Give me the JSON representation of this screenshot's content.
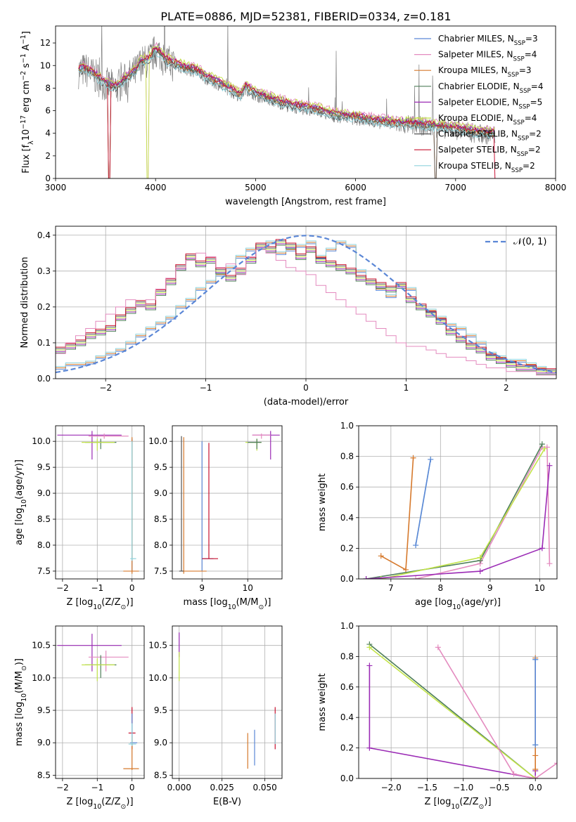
{
  "figure": {
    "title": "PLATE=0886, MJD=52381, FIBERID=0334, z=0.181"
  },
  "series_styles": [
    {
      "label": "Chabrier MILES, N<sub>SSP</sub>=3",
      "color": "#5b87d6"
    },
    {
      "label": "Salpeter MILES, N<sub>SSP</sub>=4",
      "color": "#e48bbf"
    },
    {
      "label": "Kroupa MILES, N<sub>SSP</sub>=3",
      "color": "#d6792c"
    },
    {
      "label": "Chabrier ELODIE, N<sub>SSP</sub>=4",
      "color": "#4f7f5a"
    },
    {
      "label": "Salpeter ELODIE, N<sub>SSP</sub>=5",
      "color": "#9b2bb5"
    },
    {
      "label": "Kroupa ELODIE, N<sub>SSP</sub>=4",
      "color": "#c3e44a"
    },
    {
      "label": "Chabrier STELIB, N<sub>SSP</sub>=2",
      "color": "#555555"
    },
    {
      "label": "Salpeter STELIB, N<sub>SSP</sub>=2",
      "color": "#c8102e"
    },
    {
      "label": "Kroupa STELIB, N<sub>SSP</sub>=2",
      "color": "#8fd3dd"
    }
  ],
  "chart_data": [
    {
      "id": "spectrum",
      "type": "line",
      "xlabel": "wavelength [Angstrom, rest frame]",
      "ylabel": "Flux [f<sub>λ</sub>10<sup>−17</sup> erg cm<sup>−2</sup> s<sup>−1</sup> A<sup>−1</sup>]",
      "xlim": [
        3000,
        8000
      ],
      "ylim": [
        0,
        13.5
      ],
      "xticks": [
        3000,
        4000,
        5000,
        6000,
        7000,
        8000
      ],
      "yticks": [
        0,
        2,
        4,
        6,
        8,
        10,
        12
      ],
      "grid": false,
      "legend": "top-right",
      "data_color": "#808080",
      "continuum": {
        "x": [
          3230,
          3300,
          3400,
          3500,
          3600,
          3700,
          3800,
          3850,
          3900,
          3950,
          4000,
          4050,
          4100,
          4200,
          4300,
          4400,
          4500,
          4600,
          4700,
          4800,
          4850,
          4900,
          5000,
          5200,
          5400,
          5600,
          5800,
          6000,
          6200,
          6400,
          6600,
          6800,
          7000,
          7200,
          7400
        ],
        "y": [
          9.5,
          9.6,
          9.0,
          8.3,
          8.0,
          8.7,
          9.4,
          10.2,
          10.3,
          10.6,
          11.3,
          11.0,
          10.4,
          10.0,
          9.7,
          9.5,
          8.9,
          8.5,
          8.0,
          7.5,
          7.3,
          8.0,
          7.4,
          6.8,
          6.3,
          6.0,
          5.5,
          5.3,
          5.0,
          4.8,
          4.7,
          4.5,
          4.3,
          4.0,
          3.8
        ]
      },
      "model_offsets": [
        0.25,
        0.55,
        0.1,
        0.2,
        0.35,
        0.5,
        -0.1,
        0.3,
        -0.15
      ],
      "dropouts": [
        {
          "x": 3535,
          "series": [
            2,
            7,
            3
          ]
        },
        {
          "x": 3920,
          "series": [
            5,
            1
          ]
        },
        {
          "x": 6800,
          "series": [
            6,
            2
          ]
        },
        {
          "x": 7400,
          "series": [
            7,
            1
          ]
        }
      ]
    },
    {
      "id": "residuals",
      "type": "step",
      "xlabel": "(data-model)/error",
      "ylabel": "Normed distribution",
      "xlim": [
        -2.5,
        2.5
      ],
      "ylim": [
        0,
        0.425
      ],
      "xticks": [
        -2,
        -1,
        0,
        1,
        2
      ],
      "yticks": [
        0.0,
        0.1,
        0.2,
        0.3,
        0.4
      ],
      "grid": true,
      "legend": "top-right",
      "normal_label": "𝒩(0, 1)",
      "normal_color": "#5b87d6",
      "bins": [
        -2.5,
        -2.4,
        -2.3,
        -2.2,
        -2.1,
        -2.0,
        -1.9,
        -1.8,
        -1.7,
        -1.6,
        -1.5,
        -1.4,
        -1.3,
        -1.2,
        -1.1,
        -1.0,
        -0.9,
        -0.8,
        -0.7,
        -0.6,
        -0.5,
        -0.4,
        -0.3,
        -0.2,
        -0.1,
        0.0,
        0.1,
        0.2,
        0.3,
        0.4,
        0.5,
        0.6,
        0.7,
        0.8,
        0.9,
        1.0,
        1.1,
        1.2,
        1.3,
        1.4,
        1.5,
        1.6,
        1.7,
        1.8,
        1.9,
        2.0,
        2.1,
        2.2,
        2.3,
        2.4
      ],
      "groups": [
        {
          "series": [
            0,
            2,
            8
          ],
          "values": [
            0.03,
            0.04,
            0.04,
            0.045,
            0.06,
            0.07,
            0.08,
            0.1,
            0.12,
            0.14,
            0.155,
            0.17,
            0.2,
            0.22,
            0.25,
            0.27,
            0.29,
            0.31,
            0.34,
            0.36,
            0.37,
            0.38,
            0.35,
            0.36,
            0.37,
            0.38,
            0.34,
            0.36,
            0.38,
            0.37,
            0.3,
            0.27,
            0.25,
            0.23,
            0.26,
            0.25,
            0.2,
            0.19,
            0.17,
            0.15,
            0.14,
            0.12,
            0.1,
            0.07,
            0.06,
            0.05,
            0.05,
            0.04,
            0.03,
            0.02
          ]
        },
        {
          "series": [
            3,
            4,
            5,
            6,
            7
          ],
          "values": [
            0.08,
            0.09,
            0.1,
            0.12,
            0.13,
            0.14,
            0.17,
            0.19,
            0.21,
            0.2,
            0.24,
            0.27,
            0.31,
            0.34,
            0.32,
            0.33,
            0.3,
            0.28,
            0.3,
            0.33,
            0.37,
            0.36,
            0.38,
            0.37,
            0.34,
            0.36,
            0.33,
            0.32,
            0.31,
            0.3,
            0.28,
            0.27,
            0.26,
            0.25,
            0.26,
            0.22,
            0.2,
            0.18,
            0.16,
            0.13,
            0.11,
            0.09,
            0.08,
            0.06,
            0.05,
            0.04,
            0.03,
            0.03,
            0.02,
            0.02
          ]
        },
        {
          "series": [
            1
          ],
          "values": [
            0.07,
            0.1,
            0.12,
            0.14,
            0.16,
            0.18,
            0.2,
            0.22,
            0.2,
            0.22,
            0.25,
            0.28,
            0.31,
            0.33,
            0.35,
            0.34,
            0.31,
            0.32,
            0.29,
            0.34,
            0.36,
            0.35,
            0.33,
            0.31,
            0.3,
            0.29,
            0.26,
            0.24,
            0.22,
            0.2,
            0.18,
            0.16,
            0.14,
            0.12,
            0.1,
            0.09,
            0.09,
            0.08,
            0.07,
            0.06,
            0.06,
            0.05,
            0.04,
            0.03,
            0.03,
            0.02,
            0.02,
            0.02,
            0.01,
            0.01
          ]
        }
      ]
    },
    {
      "id": "age-vs-Z",
      "type": "errorbar",
      "xlabel": "Z [log<sub>10</sub>(Z/Z<sub>⊙</sub>)]",
      "ylabel": "age  [log<sub>10</sub>(age/yr)]",
      "xlim": [
        -2.2,
        0.35
      ],
      "ylim": [
        7.35,
        10.3
      ],
      "xticks": [
        -2,
        -1,
        0
      ],
      "yticks": [
        7.5,
        8.0,
        8.5,
        9.0,
        9.5,
        10.0
      ],
      "grid": true,
      "points": [
        {
          "s": 4,
          "x": -1.15,
          "y": 10.12,
          "xe": [
            -2.15,
            -0.3
          ],
          "ye": [
            9.65,
            10.2
          ]
        },
        {
          "s": 1,
          "x": -0.8,
          "y": 10.1,
          "xe": [
            -1.25,
            -0.1
          ],
          "ye": [
            10.05,
            10.15
          ]
        },
        {
          "s": 3,
          "x": -0.9,
          "y": 9.98,
          "xe": [
            -1.35,
            -0.45
          ],
          "ye": [
            9.85,
            10.05
          ]
        },
        {
          "s": 5,
          "x": -1.0,
          "y": 9.98,
          "xe": [
            -1.45,
            -0.5
          ],
          "ye": [
            9.82,
            10.05
          ]
        },
        {
          "s": 0,
          "x": 0.0,
          "y": 7.74,
          "xe": [
            0.0,
            0.0
          ],
          "ye": [
            7.5,
            10.05
          ]
        },
        {
          "s": 2,
          "x": 0.0,
          "y": 7.5,
          "xe": [
            -0.25,
            0.2
          ],
          "ye": [
            7.45,
            10.08
          ]
        },
        {
          "s": 8,
          "x": 0.0,
          "y": 7.74,
          "xe": [
            -0.05,
            0.12
          ],
          "ye": [
            7.7,
            10.0
          ]
        }
      ]
    },
    {
      "id": "age-vs-mass",
      "type": "errorbar",
      "xlabel": "mass [log<sub>10</sub>(M/M<sub>⊙</sub>)]",
      "ylabel": "",
      "xlim": [
        8.35,
        10.75
      ],
      "ylim": [
        7.35,
        10.3
      ],
      "xticks": [
        9,
        10
      ],
      "yticks": [
        7.5,
        8.0,
        8.5,
        9.0,
        9.5,
        10.0
      ],
      "grid": true,
      "points": [
        {
          "s": 4,
          "x": 10.5,
          "y": 10.12,
          "xe": [
            10.1,
            10.7
          ],
          "ye": [
            9.65,
            10.2
          ]
        },
        {
          "s": 1,
          "x": 10.3,
          "y": 10.12,
          "xe": [
            10.1,
            10.5
          ],
          "ye": [
            10.05,
            10.15
          ]
        },
        {
          "s": 5,
          "x": 10.2,
          "y": 9.98,
          "xe": [
            9.95,
            10.3
          ],
          "ye": [
            9.82,
            10.05
          ]
        },
        {
          "s": 3,
          "x": 10.2,
          "y": 9.98,
          "xe": [
            10.0,
            10.3
          ],
          "ye": [
            9.85,
            10.05
          ]
        },
        {
          "s": 0,
          "x": 9.0,
          "y": 7.74,
          "xe": [
            9.0,
            9.25
          ],
          "ye": [
            7.5,
            10.0
          ]
        },
        {
          "s": 7,
          "x": 9.15,
          "y": 7.74,
          "xe": [
            9.0,
            9.35
          ],
          "ye": [
            7.74,
            9.97
          ]
        },
        {
          "s": 2,
          "x": 8.6,
          "y": 7.5,
          "xe": [
            8.55,
            9.1
          ],
          "ye": [
            7.45,
            10.08
          ]
        },
        {
          "s": 6,
          "x": 8.55,
          "y": 7.5,
          "xe": [
            8.5,
            8.6
          ],
          "ye": [
            7.5,
            10.1
          ]
        }
      ]
    },
    {
      "id": "weight-vs-age",
      "type": "line",
      "xlabel": "age  [log<sub>10</sub>(age/yr)]",
      "ylabel": "mass weight",
      "xlim": [
        6.35,
        10.35
      ],
      "ylim": [
        0,
        1.0
      ],
      "xticks": [
        7,
        8,
        9,
        10
      ],
      "yticks": [
        0.0,
        0.2,
        0.4,
        0.6,
        0.8,
        1.0
      ],
      "grid": true,
      "lines": [
        {
          "s": 2,
          "x": [
            6.8,
            7.3,
            7.45
          ],
          "y": [
            0.15,
            0.06,
            0.79
          ]
        },
        {
          "s": 8,
          "x": [
            7.5,
            7.8
          ],
          "y": [
            0.22,
            0.78
          ]
        },
        {
          "s": 1,
          "x": [
            7.5,
            8.8,
            10.05,
            10.15,
            10.2
          ],
          "y": [
            0.0,
            0.1,
            0.86,
            0.86,
            0.1
          ]
        },
        {
          "s": 3,
          "x": [
            6.5,
            8.8,
            10.05
          ],
          "y": [
            0.0,
            0.12,
            0.88
          ]
        },
        {
          "s": 5,
          "x": [
            6.8,
            8.8,
            10.1
          ],
          "y": [
            0.0,
            0.14,
            0.85
          ]
        },
        {
          "s": 4,
          "x": [
            6.5,
            8.8,
            10.05,
            10.2
          ],
          "y": [
            0.0,
            0.05,
            0.2,
            0.74
          ]
        },
        {
          "s": 0,
          "x": [
            7.5,
            7.8
          ],
          "y": [
            0.22,
            0.78
          ]
        }
      ]
    },
    {
      "id": "mass-vs-Z",
      "type": "errorbar",
      "xlabel": "Z [log<sub>10</sub>(Z/Z<sub>⊙</sub>)]",
      "ylabel": "mass [log<sub>10</sub>(M/M<sub>⊙</sub>)]",
      "xlim": [
        -2.2,
        0.35
      ],
      "ylim": [
        8.45,
        10.8
      ],
      "xticks": [
        -2,
        -1,
        0
      ],
      "yticks": [
        8.5,
        9.0,
        9.5,
        10.0,
        10.5
      ],
      "grid": true,
      "points": [
        {
          "s": 4,
          "x": -1.15,
          "y": 10.5,
          "xe": [
            -2.15,
            -0.3
          ],
          "ye": [
            10.1,
            10.68
          ]
        },
        {
          "s": 1,
          "x": -0.75,
          "y": 10.32,
          "xe": [
            -1.25,
            -0.1
          ],
          "ye": [
            10.1,
            10.42
          ]
        },
        {
          "s": 3,
          "x": -0.9,
          "y": 10.2,
          "xe": [
            -1.35,
            -0.45
          ],
          "ye": [
            10.0,
            10.35
          ]
        },
        {
          "s": 5,
          "x": -1.0,
          "y": 10.2,
          "xe": [
            -1.45,
            -0.5
          ],
          "ye": [
            9.95,
            10.3
          ]
        },
        {
          "s": 7,
          "x": 0.0,
          "y": 9.15,
          "xe": [
            -0.1,
            0.1
          ],
          "ye": [
            8.9,
            9.55
          ]
        },
        {
          "s": 0,
          "x": 0.0,
          "y": 9.0,
          "xe": [
            -0.05,
            0.15
          ],
          "ye": [
            8.95,
            9.45
          ]
        },
        {
          "s": 2,
          "x": 0.0,
          "y": 8.6,
          "xe": [
            -0.25,
            0.2
          ],
          "ye": [
            8.58,
            9.1
          ]
        },
        {
          "s": 8,
          "x": 0.0,
          "y": 8.98,
          "xe": [
            -0.1,
            0.12
          ],
          "ye": [
            8.95,
            9.3
          ]
        }
      ]
    },
    {
      "id": "mass-vs-EBV",
      "type": "errorbar",
      "xlabel": "E(B-V)",
      "ylabel": "",
      "xlim": [
        -0.004,
        0.06
      ],
      "ylim": [
        8.45,
        10.8
      ],
      "xticks": [
        0.0,
        0.025,
        0.05
      ],
      "xticklabels": [
        "0.000",
        "0.025",
        "0.050"
      ],
      "yticks": [
        8.5,
        9.0,
        9.5,
        10.0,
        10.5
      ],
      "grid": true,
      "points": [
        {
          "s": 4,
          "x": 0.0,
          "y": 10.5,
          "xe": [
            0.0,
            0.0
          ],
          "ye": [
            10.32,
            10.7
          ]
        },
        {
          "s": 5,
          "x": 0.0,
          "y": 10.2,
          "xe": [
            0.0,
            0.0
          ],
          "ye": [
            9.95,
            10.4
          ]
        },
        {
          "s": 2,
          "x": 0.04,
          "y": 8.6,
          "xe": [
            0.04,
            0.04
          ],
          "ye": [
            8.6,
            9.15
          ]
        },
        {
          "s": 0,
          "x": 0.044,
          "y": 8.98,
          "xe": [
            0.044,
            0.044
          ],
          "ye": [
            8.65,
            9.2
          ]
        },
        {
          "s": 7,
          "x": 0.056,
          "y": 9.15,
          "xe": [
            0.056,
            0.056
          ],
          "ye": [
            8.9,
            9.55
          ]
        },
        {
          "s": 8,
          "x": 0.056,
          "y": 9.0,
          "xe": [
            0.056,
            0.056
          ],
          "ye": [
            8.98,
            9.45
          ]
        }
      ]
    },
    {
      "id": "weight-vs-Z",
      "type": "line",
      "xlabel": "Z [log<sub>10</sub>(Z/Z<sub>⊙</sub>)]",
      "ylabel": "mass weight",
      "xlim": [
        -2.45,
        0.3
      ],
      "ylim": [
        0,
        1.0
      ],
      "xticks": [
        -2.0,
        -1.5,
        -1.0,
        -0.5,
        0.0
      ],
      "xticklabels": [
        "−2.0",
        "−1.5",
        "−1.0",
        "−0.5",
        "0.0"
      ],
      "yticks": [
        0.0,
        0.2,
        0.4,
        0.6,
        0.8,
        1.0
      ],
      "grid": true,
      "lines": [
        {
          "s": 4,
          "x": [
            -2.3,
            -2.3,
            0.0,
            0.0
          ],
          "y": [
            0.74,
            0.2,
            0.0,
            0.05
          ]
        },
        {
          "s": 3,
          "x": [
            -2.3,
            0.0
          ],
          "y": [
            0.88,
            0.0
          ]
        },
        {
          "s": 5,
          "x": [
            -2.3,
            0.0
          ],
          "y": [
            0.86,
            0.0
          ]
        },
        {
          "s": 1,
          "x": [
            -1.35,
            -0.3,
            0.0,
            0.3
          ],
          "y": [
            0.86,
            0.03,
            0.0,
            0.1
          ]
        },
        {
          "s": 2,
          "x": [
            0.0,
            0.0,
            0.0
          ],
          "y": [
            0.79,
            0.15,
            0.06
          ]
        },
        {
          "s": 8,
          "x": [
            0.0,
            0.0
          ],
          "y": [
            0.78,
            0.22
          ]
        },
        {
          "s": 0,
          "x": [
            0.0,
            0.0
          ],
          "y": [
            0.78,
            0.22
          ]
        }
      ]
    }
  ]
}
